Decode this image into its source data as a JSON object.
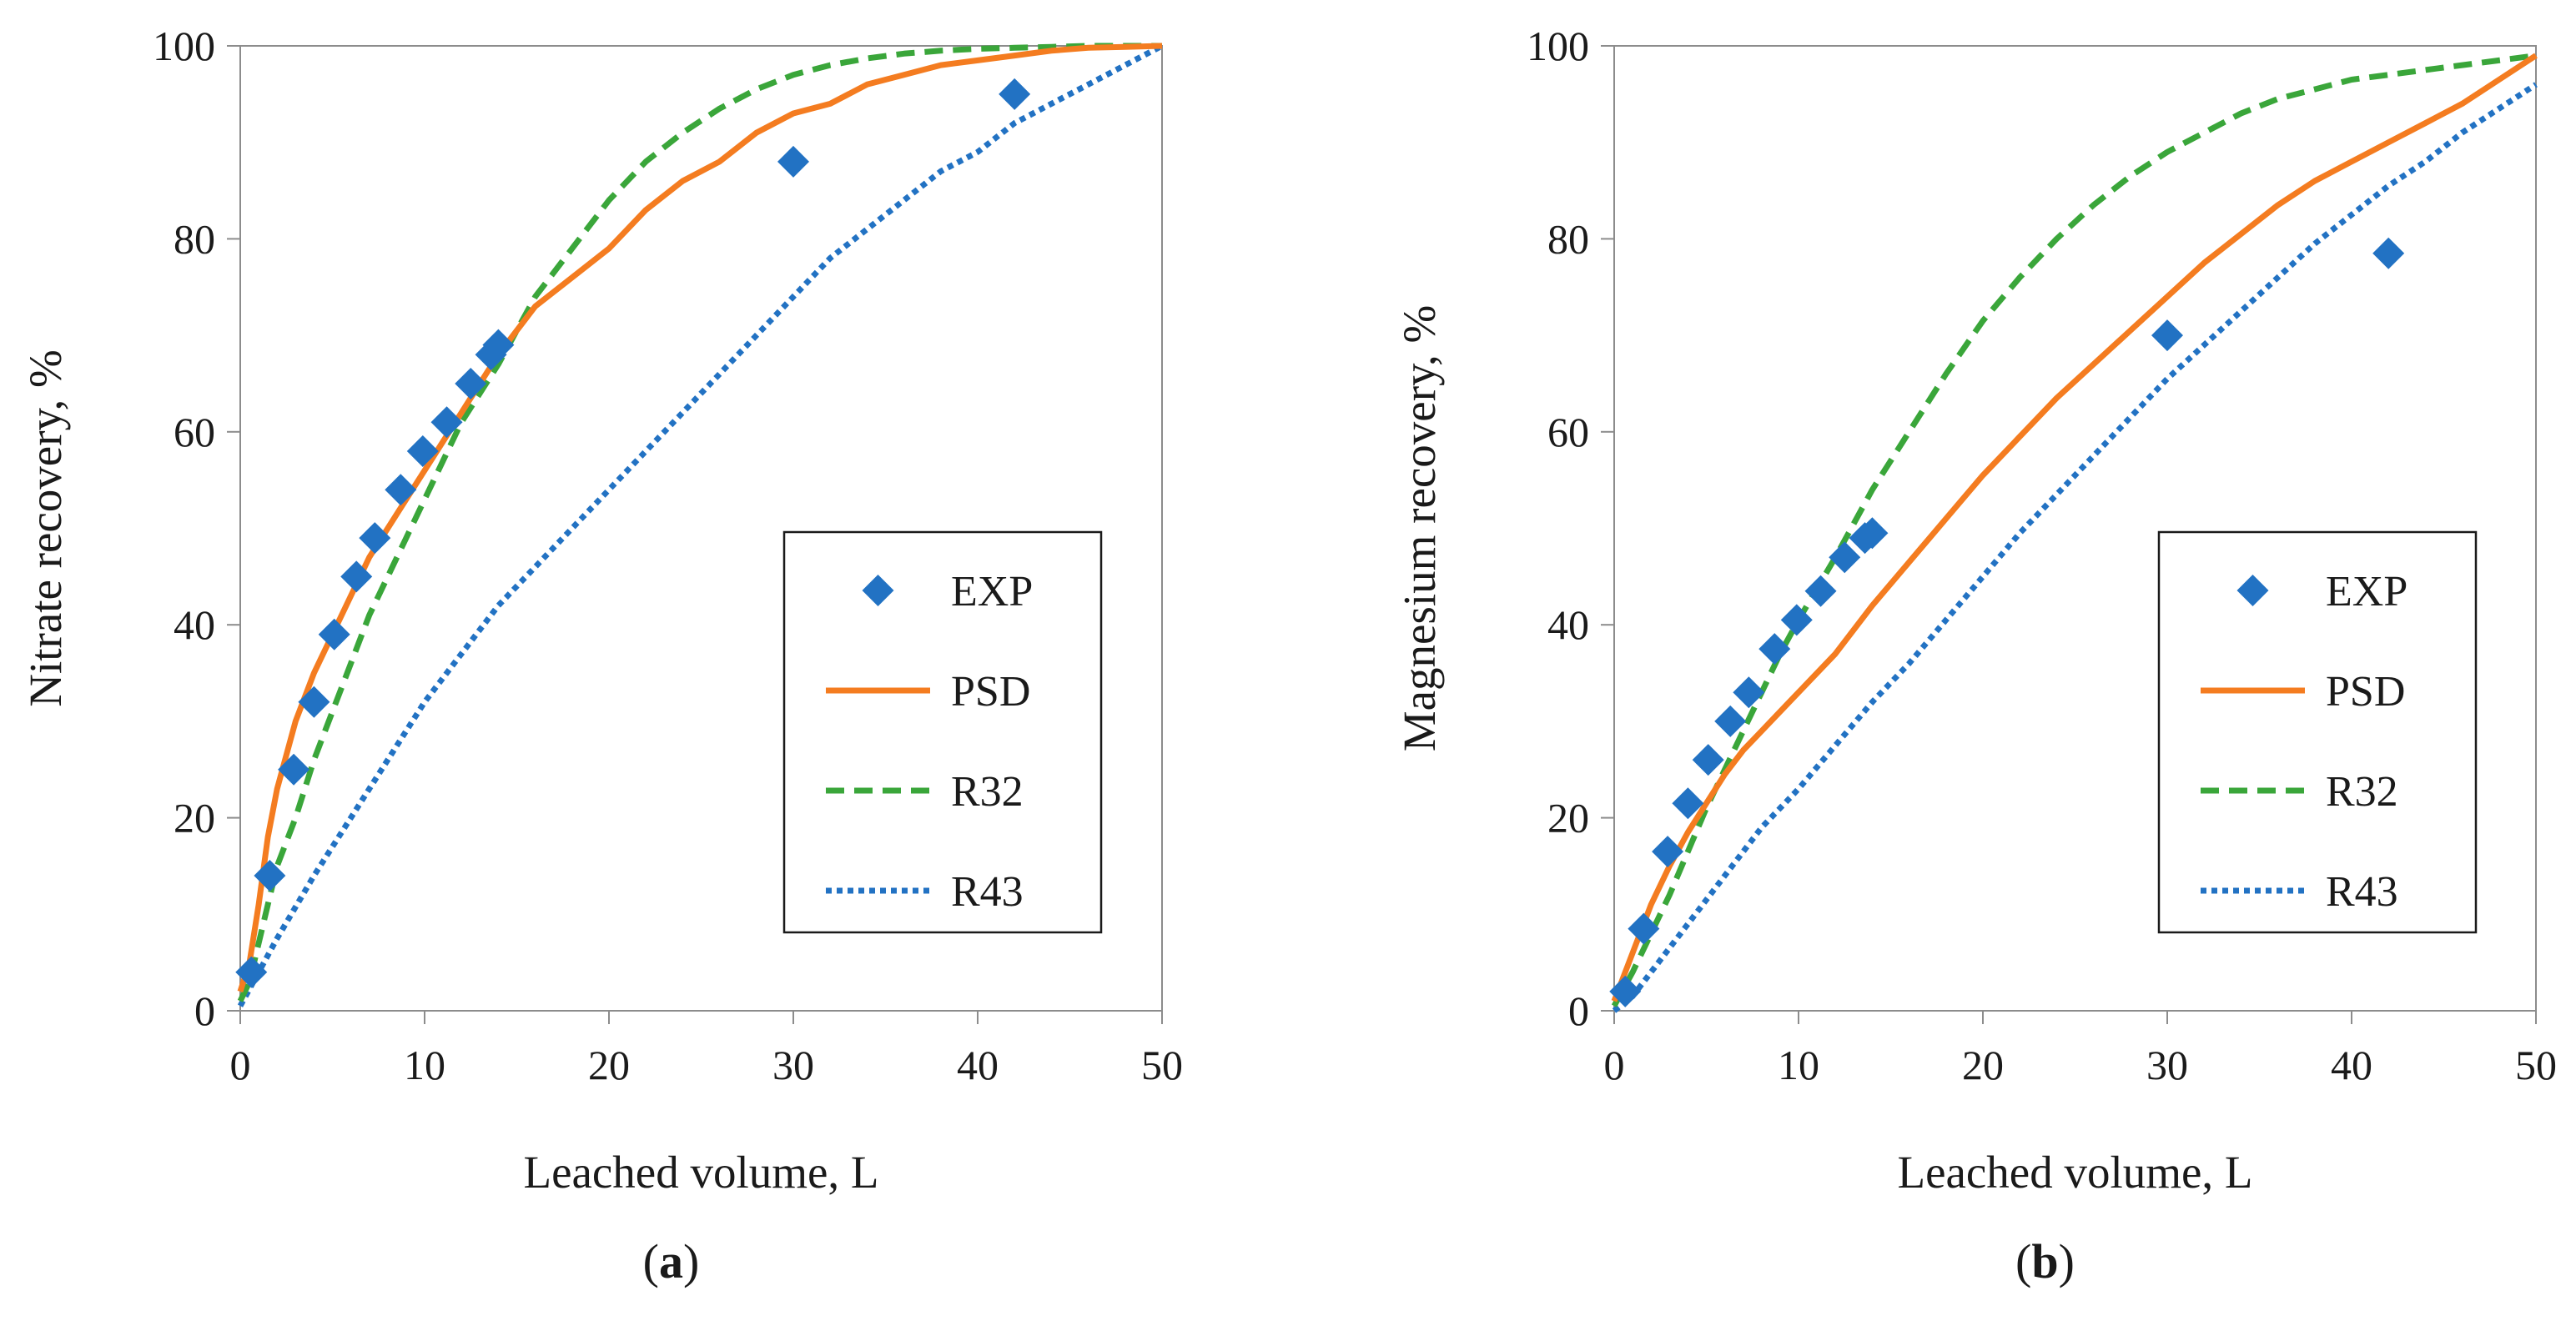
{
  "chart_data": [
    {
      "type": "line",
      "panel_label": "a",
      "xlabel": "Leached volume, L",
      "ylabel": "Nitrate recovery, %",
      "xlim": [
        0,
        50
      ],
      "ylim": [
        0,
        100
      ],
      "xticks": [
        "0",
        "10",
        "20",
        "30",
        "40",
        "50"
      ],
      "yticks": [
        "0",
        "20",
        "40",
        "60",
        "80",
        "100"
      ],
      "grid": false,
      "legend_position": "bottom-right",
      "series": [
        {
          "name": "EXP",
          "style": "markers",
          "marker": "diamond",
          "color": "#2272c3",
          "x": [
            0.6,
            1.6,
            2.9,
            4.0,
            5.1,
            6.3,
            7.3,
            8.7,
            9.9,
            11.2,
            12.5,
            13.6,
            14.0,
            30.0,
            42.0
          ],
          "y": [
            4,
            14,
            25,
            32,
            39,
            45,
            49,
            54,
            58,
            61,
            65,
            68,
            69,
            88,
            95
          ]
        },
        {
          "name": "PSD",
          "style": "solid",
          "color": "#f47c20",
          "x": [
            0,
            0.5,
            1,
            1.5,
            2,
            3,
            4,
            5,
            6,
            7,
            8,
            9,
            10,
            11,
            12,
            13,
            14,
            16,
            18,
            20,
            22,
            24,
            26,
            28,
            30,
            32,
            34,
            36,
            38,
            40,
            42,
            44,
            46,
            48,
            50
          ],
          "y": [
            2,
            5,
            11,
            18,
            23,
            30,
            35,
            39,
            43,
            47,
            50,
            53,
            56,
            59,
            62,
            65,
            68,
            73,
            76,
            79,
            83,
            86,
            88,
            91,
            93,
            94,
            96,
            97,
            98,
            98.5,
            99,
            99.5,
            99.8,
            99.9,
            100
          ]
        },
        {
          "name": "R32",
          "style": "dashed",
          "color": "#3aa63a",
          "x": [
            0,
            0.5,
            1,
            1.5,
            2,
            3,
            4,
            5,
            6,
            7,
            8,
            9,
            10,
            11,
            12,
            13,
            14,
            16,
            18,
            20,
            22,
            24,
            26,
            28,
            30,
            32,
            34,
            36,
            38,
            40,
            42,
            44,
            46,
            48,
            50
          ],
          "y": [
            1,
            3,
            7,
            11,
            15,
            20,
            26,
            31,
            36,
            41,
            45,
            49,
            53,
            57,
            61,
            64,
            67,
            74,
            79,
            84,
            88,
            91,
            93.5,
            95.5,
            97,
            98,
            98.7,
            99.2,
            99.5,
            99.7,
            99.8,
            99.9,
            100,
            100,
            100
          ]
        },
        {
          "name": "R43",
          "style": "dotted",
          "color": "#2272c3",
          "x": [
            0,
            1,
            2,
            4,
            6,
            8,
            10,
            12,
            14,
            16,
            18,
            20,
            22,
            24,
            26,
            28,
            30,
            32,
            34,
            36,
            38,
            40,
            42,
            44,
            46,
            48,
            50
          ],
          "y": [
            0.5,
            4,
            7.5,
            14,
            20,
            26,
            32,
            37,
            42,
            46,
            50,
            54,
            58,
            62,
            66,
            70,
            74,
            78,
            81,
            84,
            87,
            89,
            92,
            94,
            96,
            98,
            100
          ]
        }
      ]
    },
    {
      "type": "line",
      "panel_label": "b",
      "xlabel": "Leached volume, L",
      "ylabel": "Magnesium recovery, %",
      "xlim": [
        0,
        50
      ],
      "ylim": [
        0,
        100
      ],
      "xticks": [
        "0",
        "10",
        "20",
        "30",
        "40",
        "50"
      ],
      "yticks": [
        "0",
        "20",
        "40",
        "60",
        "80",
        "100"
      ],
      "grid": false,
      "legend_position": "bottom-right",
      "series": [
        {
          "name": "EXP",
          "style": "markers",
          "marker": "diamond",
          "color": "#2272c3",
          "x": [
            0.6,
            1.6,
            2.9,
            4.0,
            5.1,
            6.3,
            7.3,
            8.7,
            9.9,
            11.2,
            12.5,
            13.6,
            14.0,
            30.0,
            42.0
          ],
          "y": [
            2,
            8.5,
            16.5,
            21.5,
            26,
            30,
            33,
            37.5,
            40.5,
            43.5,
            47,
            49,
            49.5,
            70,
            78.5
          ]
        },
        {
          "name": "PSD",
          "style": "solid",
          "color": "#f47c20",
          "x": [
            0,
            1,
            2,
            3,
            4,
            5,
            6,
            7,
            8,
            9,
            10,
            12,
            14,
            16,
            18,
            20,
            22,
            24,
            26,
            28,
            30,
            32,
            34,
            36,
            38,
            40,
            42,
            44,
            46,
            48,
            50
          ],
          "y": [
            1,
            6,
            11,
            15,
            18.5,
            21.5,
            24.5,
            27,
            29,
            31,
            33,
            37,
            42,
            46.5,
            51,
            55.5,
            59.5,
            63.5,
            67,
            70.5,
            74,
            77.5,
            80.5,
            83.5,
            86,
            88,
            90,
            92,
            94,
            96.5,
            99
          ]
        },
        {
          "name": "R32",
          "style": "dashed",
          "color": "#3aa63a",
          "x": [
            0,
            1,
            2,
            3,
            4,
            5,
            6,
            7,
            8,
            9,
            10,
            12,
            14,
            16,
            18,
            20,
            22,
            24,
            26,
            28,
            30,
            32,
            34,
            36,
            38,
            40,
            42,
            44,
            46,
            48,
            50
          ],
          "y": [
            0.5,
            4,
            8,
            12,
            16.5,
            21,
            25,
            29,
            33,
            37,
            40.5,
            47,
            54,
            60,
            66,
            71.5,
            76,
            80,
            83.5,
            86.5,
            89,
            91,
            93,
            94.5,
            95.5,
            96.5,
            97,
            97.5,
            98,
            98.5,
            99
          ]
        },
        {
          "name": "R43",
          "style": "dotted",
          "color": "#2272c3",
          "x": [
            0,
            1,
            2,
            4,
            6,
            8,
            10,
            12,
            14,
            16,
            18,
            20,
            22,
            24,
            26,
            28,
            30,
            32,
            34,
            36,
            38,
            40,
            42,
            44,
            46,
            48,
            50
          ],
          "y": [
            0,
            1.5,
            4,
            9,
            14,
            19,
            23,
            27.5,
            32,
            36,
            40.5,
            45,
            49.5,
            53.5,
            57.5,
            61.5,
            65.5,
            69,
            72.5,
            76,
            79.5,
            82.5,
            85.5,
            88,
            91,
            93.5,
            96
          ]
        }
      ]
    }
  ]
}
